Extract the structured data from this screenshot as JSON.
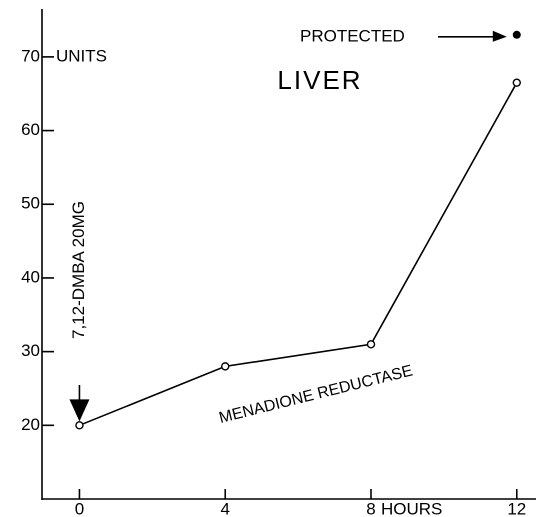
{
  "chart_data": {
    "type": "line",
    "title": "LIVER",
    "x_label": "HOURS",
    "y_label": "UNITS",
    "x": [
      0,
      4,
      8,
      12
    ],
    "series": [
      {
        "name": "MENADIONE REDUCTASE",
        "color": "#000000",
        "values": [
          20,
          28,
          31,
          66.5
        ]
      }
    ],
    "protected": {
      "label": "PROTECTED",
      "x": 12,
      "y": 73
    },
    "treatment": {
      "label": "7,12-DMBA 20MG",
      "x": 0
    },
    "xlim": [
      -1,
      12.5
    ],
    "ylim": [
      10,
      76.5
    ],
    "xticks": [
      0,
      4,
      8,
      12
    ],
    "yticks": [
      20,
      30,
      40,
      50,
      60,
      70
    ],
    "grid": false
  }
}
